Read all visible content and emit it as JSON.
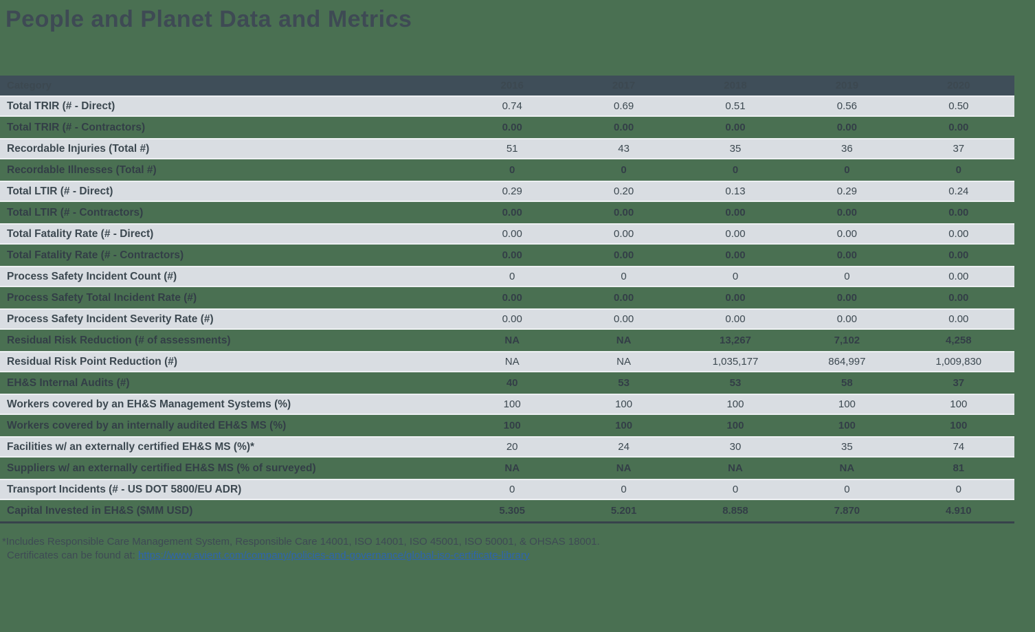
{
  "page": {
    "title": "People and Planet Data and Metrics",
    "background_color": "#4a7052",
    "title_color": "#3e4a54"
  },
  "table": {
    "header": {
      "category_label": "Category",
      "years": [
        "2016",
        "2017",
        "2018",
        "2019",
        "2020"
      ],
      "header_bg_color": "#3f4e59",
      "header_text_color": "#ffffff",
      "light_row_bg_color": "#d9dde2"
    }
  },
  "chart_data": {
    "type": "table",
    "title": "People and Planet Data and Metrics",
    "categories": [
      "2016",
      "2017",
      "2018",
      "2019",
      "2020"
    ],
    "rows": [
      {
        "label": "Total TRIR (# - Direct)",
        "values": [
          "0.74",
          "0.69",
          "0.51",
          "0.56",
          "0.50"
        ]
      },
      {
        "label": "Total TRIR (# - Contractors)",
        "values": [
          "0.00",
          "0.00",
          "0.00",
          "0.00",
          "0.00"
        ]
      },
      {
        "label": "Recordable Injuries (Total #)",
        "values": [
          "51",
          "43",
          "35",
          "36",
          "37"
        ]
      },
      {
        "label": "Recordable Illnesses (Total #)",
        "values": [
          "0",
          "0",
          "0",
          "0",
          "0"
        ]
      },
      {
        "label": "Total LTIR (# - Direct)",
        "values": [
          "0.29",
          "0.20",
          "0.13",
          "0.29",
          "0.24"
        ]
      },
      {
        "label": "Total LTIR (# - Contractors)",
        "values": [
          "0.00",
          "0.00",
          "0.00",
          "0.00",
          "0.00"
        ]
      },
      {
        "label": "Total Fatality Rate (# - Direct)",
        "values": [
          "0.00",
          "0.00",
          "0.00",
          "0.00",
          "0.00"
        ]
      },
      {
        "label": "Total Fatality Rate (# - Contractors)",
        "values": [
          "0.00",
          "0.00",
          "0.00",
          "0.00",
          "0.00"
        ]
      },
      {
        "label": "Process Safety Incident Count (#)",
        "values": [
          "0",
          "0",
          "0",
          "0",
          "0.00"
        ]
      },
      {
        "label": "Process Safety Total Incident Rate (#)",
        "values": [
          "0.00",
          "0.00",
          "0.00",
          "0.00",
          "0.00"
        ]
      },
      {
        "label": "Process Safety Incident Severity Rate (#)",
        "values": [
          "0.00",
          "0.00",
          "0.00",
          "0.00",
          "0.00"
        ]
      },
      {
        "label": "Residual Risk Reduction (# of assessments)",
        "values": [
          "NA",
          "NA",
          "13,267",
          "7,102",
          "4,258"
        ]
      },
      {
        "label": "Residual Risk Point Reduction (#)",
        "values": [
          "NA",
          "NA",
          "1,035,177",
          "864,997",
          "1,009,830"
        ]
      },
      {
        "label": "EH&S Internal Audits (#)",
        "values": [
          "40",
          "53",
          "53",
          "58",
          "37"
        ]
      },
      {
        "label": "Workers covered by an EH&S Management Systems (%)",
        "values": [
          "100",
          "100",
          "100",
          "100",
          "100"
        ]
      },
      {
        "label": "Workers covered by an internally audited EH&S MS (%)",
        "values": [
          "100",
          "100",
          "100",
          "100",
          "100"
        ]
      },
      {
        "label": "Facilities w/ an externally certified EH&S MS (%)*",
        "values": [
          "20",
          "24",
          "30",
          "35",
          "74"
        ]
      },
      {
        "label": "Suppliers w/ an externally certified EH&S MS (% of surveyed)",
        "values": [
          "NA",
          "NA",
          "NA",
          "NA",
          "81"
        ]
      },
      {
        "label": "Transport Incidents (# - US DOT 5800/EU ADR)",
        "values": [
          "0",
          "0",
          "0",
          "0",
          "0"
        ]
      },
      {
        "label": "Capital Invested in EH&S ($MM USD)",
        "values": [
          "5.305",
          "5.201",
          "8.858",
          "7.870",
          "4.910"
        ]
      }
    ]
  },
  "footnote": {
    "line1": "*Includes Responsible Care Management System, Responsible Care 14001, ISO 14001, ISO 45001, ISO 50001, & OHSAS 18001.",
    "line2_prefix": "Certificates can be found at: ",
    "link_text": "https://www.avient.com/company/policies-and-governance/global-iso-certificate-library",
    "link_color": "#2d64ae"
  }
}
